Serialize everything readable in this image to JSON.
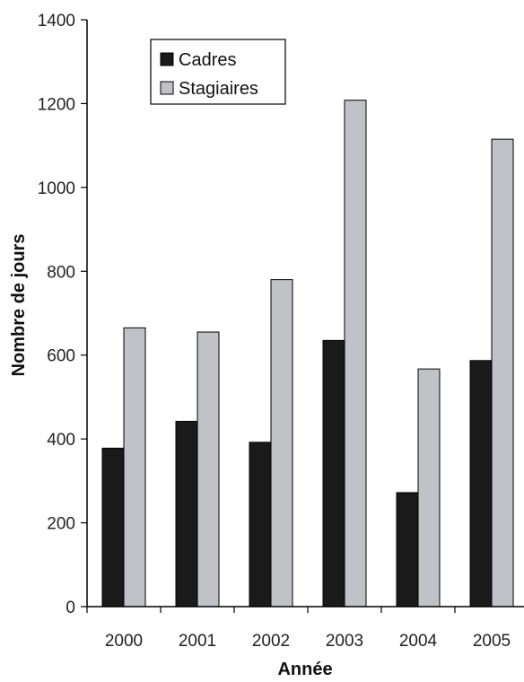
{
  "chart_data": {
    "type": "bar",
    "title": "",
    "xlabel": "Année",
    "ylabel": "Nombre de jours",
    "categories": [
      "2000",
      "2001",
      "2002",
      "2003",
      "2004",
      "2005"
    ],
    "series": [
      {
        "name": "Cadres",
        "color": "#1a1a1a",
        "values": [
          378,
          442,
          392,
          635,
          272,
          587
        ]
      },
      {
        "name": "Stagiaires",
        "color": "#c0c2c8",
        "values": [
          665,
          655,
          780,
          1208,
          567,
          1115
        ]
      }
    ],
    "ylim": [
      0,
      1400
    ],
    "yticks": [
      "0",
      "200",
      "400",
      "600",
      "800",
      "1000",
      "1200",
      "1400"
    ],
    "grid": false,
    "legend_position": "top-left"
  }
}
